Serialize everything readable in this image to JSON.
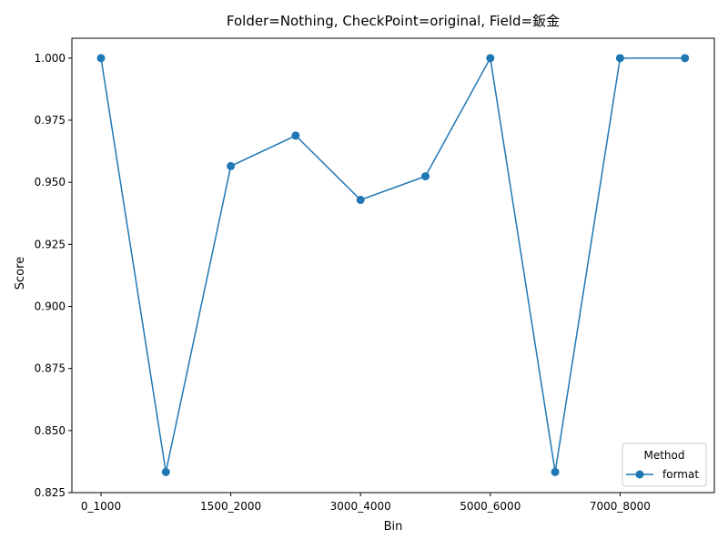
{
  "chart_data": {
    "type": "line",
    "title": "Folder=Nothing, CheckPoint=original, Field=鈑金",
    "xlabel": "Bin",
    "ylabel": "Score",
    "x_tick_labels": [
      "0_1000",
      "1500_2000",
      "3000_4000",
      "5000_6000",
      "7000_8000"
    ],
    "ylim": [
      0.825,
      1.008
    ],
    "y_ticks": [
      0.825,
      0.85,
      0.875,
      0.9,
      0.925,
      0.95,
      0.975,
      1.0
    ],
    "y_tick_labels": [
      "0.825",
      "0.850",
      "0.875",
      "0.900",
      "0.925",
      "0.950",
      "0.975",
      "1.000"
    ],
    "grid": false,
    "legend": {
      "title": "Method",
      "placement": "lower-right"
    },
    "series": [
      {
        "name": "format",
        "color": "#1f77b4",
        "marker": "circle",
        "values": [
          1.0,
          0.8333,
          0.9565,
          0.9688,
          0.9429,
          0.9524,
          1.0,
          0.8333,
          1.0,
          1.0
        ]
      }
    ]
  }
}
